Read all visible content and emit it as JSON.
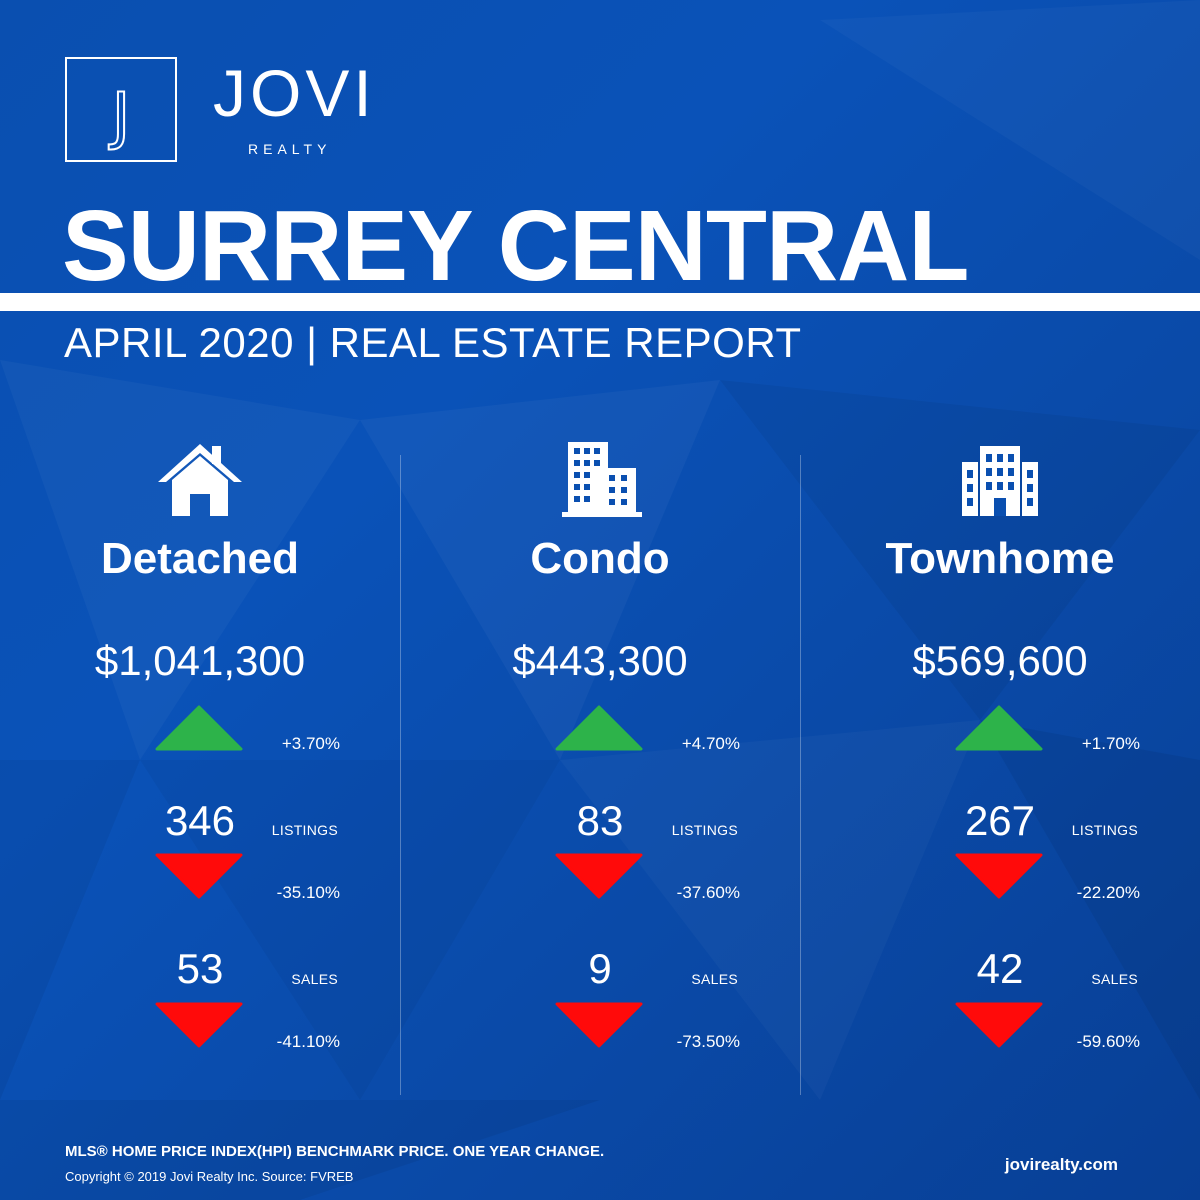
{
  "brand": {
    "logo_letter": "J",
    "name": "JOVI",
    "sub": "REALTY"
  },
  "title": "SURREY CENTRAL",
  "subtitle": "APRIL 2020 | REAL ESTATE REPORT",
  "colors": {
    "background": "#0a4fb0",
    "up": "#2db34a",
    "down": "#ff0a0a",
    "text": "#ffffff"
  },
  "categories": [
    {
      "name": "Detached",
      "icon": "house-icon",
      "price": "$1,041,300",
      "price_change": "+3.70%",
      "price_trend": "up",
      "listings": "346",
      "listings_label": "LISTINGS",
      "listings_change": "-35.10%",
      "listings_trend": "down",
      "sales": "53",
      "sales_label": "SALES",
      "sales_change": "-41.10%",
      "sales_trend": "down"
    },
    {
      "name": "Condo",
      "icon": "condo-building-icon",
      "price": "$443,300",
      "price_change": "+4.70%",
      "price_trend": "up",
      "listings": "83",
      "listings_label": "LISTINGS",
      "listings_change": "-37.60%",
      "listings_trend": "down",
      "sales": "9",
      "sales_label": "SALES",
      "sales_change": "-73.50%",
      "sales_trend": "down"
    },
    {
      "name": "Townhome",
      "icon": "townhome-building-icon",
      "price": "$569,600",
      "price_change": "+1.70%",
      "price_trend": "up",
      "listings": "267",
      "listings_label": "LISTINGS",
      "listings_change": "-22.20%",
      "listings_trend": "down",
      "sales": "42",
      "sales_label": "SALES",
      "sales_change": "-59.60%",
      "sales_trend": "down"
    }
  ],
  "footer": {
    "note": "MLS® HOME PRICE INDEX(HPI) BENCHMARK PRICE. ONE YEAR CHANGE.",
    "copyright": "Copyright © 2019 Jovi Realty Inc. Source: FVREB",
    "website": "jovirealty.com"
  }
}
